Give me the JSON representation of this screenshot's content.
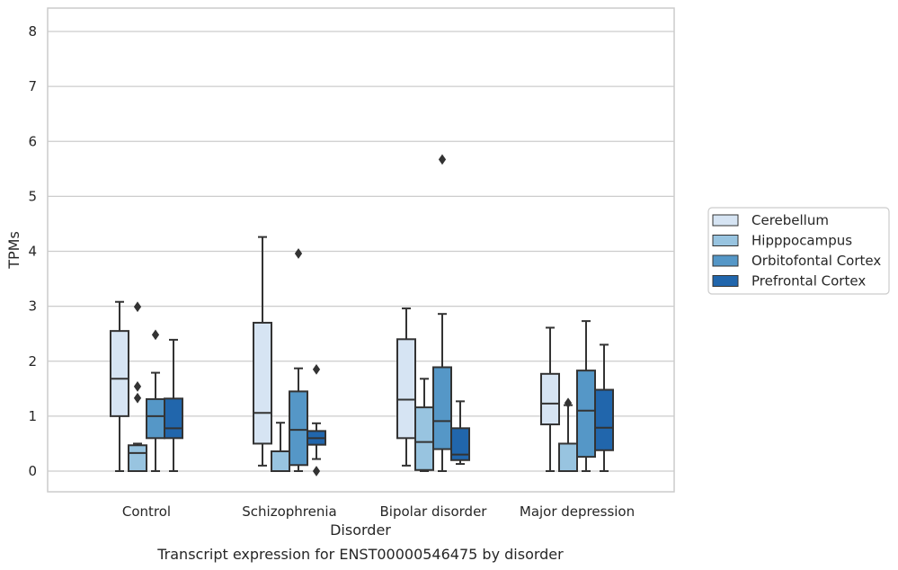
{
  "chart_data": {
    "type": "box",
    "xlabel": "Disorder",
    "ylabel": "TPMs",
    "caption": "Transcript expression for ENST00000546475 by disorder",
    "ylim": [
      -0.4,
      8.4
    ],
    "yticks": [
      "0",
      "1",
      "2",
      "3",
      "4",
      "5",
      "6",
      "7",
      "8"
    ],
    "grid": true,
    "legend_position": "right",
    "categories": [
      "Control",
      "Schizophrenia",
      "Bipolar disorder",
      "Major depression"
    ],
    "series": [
      {
        "name": "Cerebellum",
        "color": "#d6e4f3",
        "boxes": [
          {
            "whislo": 0.0,
            "q1": 1.0,
            "median": 1.68,
            "q3": 2.55,
            "whishi": 3.08,
            "fliers": []
          },
          {
            "whislo": 0.1,
            "q1": 0.5,
            "median": 1.06,
            "q3": 2.7,
            "whishi": 4.26,
            "fliers": []
          },
          {
            "whislo": 0.1,
            "q1": 0.6,
            "median": 1.3,
            "q3": 2.4,
            "whishi": 2.96,
            "fliers": []
          },
          {
            "whislo": 0.0,
            "q1": 0.85,
            "median": 1.23,
            "q3": 1.77,
            "whishi": 2.61,
            "fliers": []
          }
        ]
      },
      {
        "name": "Hipppocampus",
        "color": "#98c4e0",
        "boxes": [
          {
            "whislo": 0.0,
            "q1": 0.0,
            "median": 0.33,
            "q3": 0.47,
            "whishi": 0.5,
            "fliers": [
              1.33,
              1.54,
              2.99
            ]
          },
          {
            "whislo": 0.0,
            "q1": 0.0,
            "median": 0.0,
            "q3": 0.36,
            "whishi": 0.88,
            "fliers": []
          },
          {
            "whislo": 0.0,
            "q1": 0.02,
            "median": 0.53,
            "q3": 1.16,
            "whishi": 1.68,
            "fliers": []
          },
          {
            "whislo": 0.0,
            "q1": 0.0,
            "median": 0.0,
            "q3": 0.5,
            "whishi": 1.2,
            "fliers": [
              1.24
            ]
          }
        ]
      },
      {
        "name": "Orbitofontal Cortex",
        "color": "#5597c7",
        "boxes": [
          {
            "whislo": 0.0,
            "q1": 0.6,
            "median": 1.0,
            "q3": 1.31,
            "whishi": 1.79,
            "fliers": [
              2.48
            ]
          },
          {
            "whislo": 0.0,
            "q1": 0.11,
            "median": 0.75,
            "q3": 1.45,
            "whishi": 1.87,
            "fliers": [
              3.96
            ]
          },
          {
            "whislo": 0.0,
            "q1": 0.4,
            "median": 0.91,
            "q3": 1.89,
            "whishi": 2.86,
            "fliers": [
              5.67
            ]
          },
          {
            "whislo": 0.0,
            "q1": 0.26,
            "median": 1.1,
            "q3": 1.83,
            "whishi": 2.73,
            "fliers": []
          }
        ]
      },
      {
        "name": "Prefrontal Cortex",
        "color": "#2166ac",
        "boxes": [
          {
            "whislo": 0.0,
            "q1": 0.6,
            "median": 0.78,
            "q3": 1.32,
            "whishi": 2.39,
            "fliers": []
          },
          {
            "whislo": 0.22,
            "q1": 0.48,
            "median": 0.6,
            "q3": 0.73,
            "whishi": 0.87,
            "fliers": [
              0.0,
              1.85
            ]
          },
          {
            "whislo": 0.13,
            "q1": 0.2,
            "median": 0.3,
            "q3": 0.78,
            "whishi": 1.27,
            "fliers": []
          },
          {
            "whislo": 0.0,
            "q1": 0.38,
            "median": 0.79,
            "q3": 1.48,
            "whishi": 2.3,
            "fliers": []
          }
        ]
      }
    ],
    "styles": {
      "edge_color": "#333333",
      "grid_color": "#cccccc",
      "frame_color": "#cccccc"
    }
  }
}
